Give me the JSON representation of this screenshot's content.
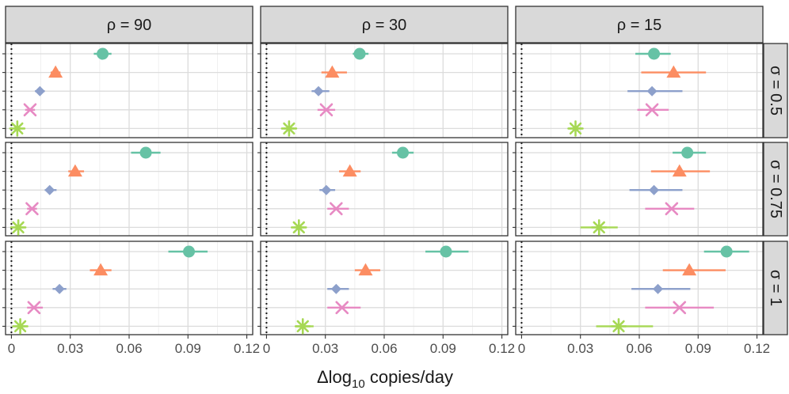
{
  "chart_data": {
    "type": "scatter",
    "subtype": "faceted dot-and-interval plot",
    "xlabel": {
      "prefix": "Δlog",
      "subscript": "10",
      "suffix": " copies/day"
    },
    "x_ticks": [
      0,
      0.03,
      0.06,
      0.09,
      0.12
    ],
    "x_tick_labels": [
      "0",
      "0.03",
      "0.06",
      "0.09",
      "0.12"
    ],
    "xlim": [
      -0.003,
      0.123
    ],
    "grid": true,
    "reference_line": {
      "x": 0,
      "style": "dotted"
    },
    "column_facets": [
      "ρ = 90",
      "ρ = 30",
      "ρ = 15"
    ],
    "row_facets": [
      "σ = 0.5",
      "σ = 0.75",
      "σ = 1"
    ],
    "row_levels": 5,
    "series": [
      {
        "shape": "circle",
        "color": "#66c2a5",
        "level": 1
      },
      {
        "shape": "triangle",
        "color": "#fc8d62",
        "level": 2
      },
      {
        "shape": "diamond",
        "color": "#8da0cb",
        "level": 3
      },
      {
        "shape": "cross",
        "color": "#e78ac3",
        "level": 4
      },
      {
        "shape": "asterisk",
        "color": "#a6d854",
        "level": 5
      }
    ],
    "panels": [
      {
        "col": 0,
        "row": 0,
        "points": [
          {
            "x": 0.0465,
            "lo": 0.042,
            "hi": 0.051
          },
          {
            "x": 0.0225,
            "lo": 0.02,
            "hi": 0.025
          },
          {
            "x": 0.0145,
            "lo": 0.012,
            "hi": 0.017
          },
          {
            "x": 0.0095,
            "lo": 0.007,
            "hi": 0.012
          },
          {
            "x": 0.003,
            "lo": 0.001,
            "hi": 0.005
          }
        ]
      },
      {
        "col": 1,
        "row": 0,
        "points": [
          {
            "x": 0.0475,
            "lo": 0.044,
            "hi": 0.052
          },
          {
            "x": 0.0335,
            "lo": 0.028,
            "hi": 0.041
          },
          {
            "x": 0.0265,
            "lo": 0.023,
            "hi": 0.032
          },
          {
            "x": 0.0305,
            "lo": 0.026,
            "hi": 0.035
          },
          {
            "x": 0.0115,
            "lo": 0.009,
            "hi": 0.014
          }
        ]
      },
      {
        "col": 2,
        "row": 0,
        "points": [
          {
            "x": 0.0675,
            "lo": 0.058,
            "hi": 0.076
          },
          {
            "x": 0.0775,
            "lo": 0.061,
            "hi": 0.094
          },
          {
            "x": 0.0665,
            "lo": 0.054,
            "hi": 0.082
          },
          {
            "x": 0.0665,
            "lo": 0.059,
            "hi": 0.075
          },
          {
            "x": 0.0275,
            "lo": 0.024,
            "hi": 0.031
          }
        ]
      },
      {
        "col": 0,
        "row": 1,
        "points": [
          {
            "x": 0.0685,
            "lo": 0.061,
            "hi": 0.076
          },
          {
            "x": 0.0325,
            "lo": 0.029,
            "hi": 0.037
          },
          {
            "x": 0.0195,
            "lo": 0.017,
            "hi": 0.023
          },
          {
            "x": 0.0105,
            "lo": 0.008,
            "hi": 0.013
          },
          {
            "x": 0.0035,
            "lo": 0.001,
            "hi": 0.006
          }
        ]
      },
      {
        "col": 1,
        "row": 1,
        "points": [
          {
            "x": 0.0695,
            "lo": 0.064,
            "hi": 0.075
          },
          {
            "x": 0.0425,
            "lo": 0.037,
            "hi": 0.048
          },
          {
            "x": 0.0305,
            "lo": 0.027,
            "hi": 0.035
          },
          {
            "x": 0.0355,
            "lo": 0.031,
            "hi": 0.042
          },
          {
            "x": 0.0165,
            "lo": 0.014,
            "hi": 0.019
          }
        ]
      },
      {
        "col": 2,
        "row": 1,
        "points": [
          {
            "x": 0.0845,
            "lo": 0.077,
            "hi": 0.094
          },
          {
            "x": 0.0805,
            "lo": 0.066,
            "hi": 0.096
          },
          {
            "x": 0.0675,
            "lo": 0.055,
            "hi": 0.082
          },
          {
            "x": 0.0765,
            "lo": 0.063,
            "hi": 0.088
          },
          {
            "x": 0.0395,
            "lo": 0.03,
            "hi": 0.049
          }
        ]
      },
      {
        "col": 0,
        "row": 2,
        "points": [
          {
            "x": 0.0905,
            "lo": 0.08,
            "hi": 0.1
          },
          {
            "x": 0.0455,
            "lo": 0.04,
            "hi": 0.051
          },
          {
            "x": 0.0245,
            "lo": 0.021,
            "hi": 0.028
          },
          {
            "x": 0.0115,
            "lo": 0.008,
            "hi": 0.016
          },
          {
            "x": 0.0045,
            "lo": 0.002,
            "hi": 0.007
          }
        ]
      },
      {
        "col": 1,
        "row": 2,
        "points": [
          {
            "x": 0.0915,
            "lo": 0.081,
            "hi": 0.103
          },
          {
            "x": 0.0505,
            "lo": 0.045,
            "hi": 0.058
          },
          {
            "x": 0.0355,
            "lo": 0.031,
            "hi": 0.042
          },
          {
            "x": 0.0385,
            "lo": 0.031,
            "hi": 0.048
          },
          {
            "x": 0.0185,
            "lo": 0.015,
            "hi": 0.024
          }
        ]
      },
      {
        "col": 2,
        "row": 2,
        "points": [
          {
            "x": 0.1045,
            "lo": 0.093,
            "hi": 0.116
          },
          {
            "x": 0.0855,
            "lo": 0.072,
            "hi": 0.104
          },
          {
            "x": 0.0695,
            "lo": 0.056,
            "hi": 0.086
          },
          {
            "x": 0.0805,
            "lo": 0.063,
            "hi": 0.098
          },
          {
            "x": 0.0495,
            "lo": 0.038,
            "hi": 0.067
          }
        ]
      }
    ]
  }
}
